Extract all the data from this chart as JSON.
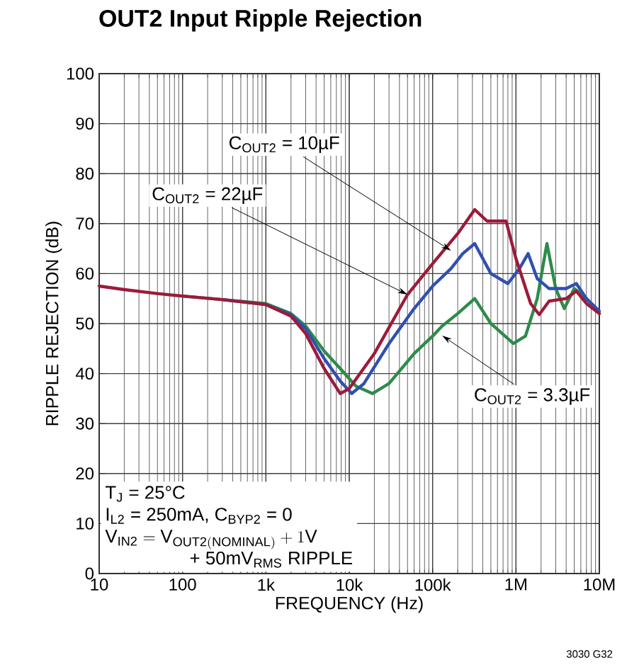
{
  "chart_data": {
    "type": "line",
    "title": "**OUT2 Input Ripple Rejection**",
    "xlabel": "FREQUENCY (Hz)",
    "ylabel": "RIPPLE REJECTION (dB)",
    "log": "x",
    "grid": true,
    "marker": "none",
    "line_style": "solid",
    "xlim": [
      10,
      10000000
    ],
    "ylim": [
      0,
      100
    ],
    "xticks": [
      10,
      100,
      {
        "value": 1000,
        "label": "1k"
      },
      {
        "value": 10000,
        "label": "10k"
      },
      {
        "value": 100000,
        "label": "100k"
      },
      {
        "value": 1000000,
        "label": "1M"
      },
      {
        "value": 10000000,
        "label": "10M"
      }
    ],
    "yticks": [
      0,
      10,
      20,
      30,
      40,
      50,
      60,
      70,
      80,
      90,
      100
    ],
    "series": [
      {
        "color": "#2e8b4a",
        "x": [
          100,
          300,
          1000,
          2000,
          3000,
          5000,
          7800,
          12000,
          19000,
          30000,
          60000,
          100000,
          130000,
          200000,
          320000,
          500000,
          930000,
          1300000,
          1800000,
          2350000,
          3000000,
          3800000,
          5000000,
          7000000,
          10000000
        ],
        "values": [
          55.5,
          54.8,
          54,
          52,
          49.5,
          44.5,
          41,
          37.5,
          36,
          38,
          44,
          47.5,
          49.5,
          52,
          55,
          50,
          46,
          47.5,
          55,
          66,
          57,
          53,
          57,
          55,
          52
        ]
      },
      {
        "color": "#3050b0",
        "x": [
          300,
          1000,
          2000,
          3000,
          5000,
          7800,
          10700,
          15000,
          30000,
          60000,
          100000,
          166000,
          230000,
          320000,
          500000,
          800000,
          1100000,
          1400000,
          1800000,
          2500000,
          4000000,
          5300000,
          7000000,
          10000000
        ],
        "values": [
          54.8,
          53.8,
          51.8,
          49,
          43,
          38.5,
          36,
          38,
          46,
          53,
          57.5,
          61,
          64,
          66,
          60,
          58,
          61,
          64,
          59,
          57,
          57,
          58,
          55,
          52.5
        ]
      },
      {
        "color": "#9b1b3a",
        "x": [
          10,
          20,
          50,
          100,
          300,
          1000,
          2000,
          3000,
          5000,
          7800,
          10000,
          20000,
          50000,
          100000,
          200000,
          320000,
          450000,
          760000,
          1000000,
          1500000,
          1900000,
          2500000,
          4000000,
          5300000,
          7000000,
          10000000
        ],
        "values": [
          57.5,
          56.8,
          56,
          55.5,
          54.8,
          53.8,
          51.5,
          48,
          41,
          36,
          37,
          44,
          55.8,
          62,
          68,
          72.8,
          70.5,
          70.5,
          63,
          54,
          51.8,
          54.5,
          55,
          56.5,
          54,
          52
        ]
      }
    ],
    "annotations": [
      {
        "text": "C$_{OUT2}$ = 10µF",
        "x": 166000,
        "y": 64.6
      },
      {
        "text": "C$_{OUT2}$ = 22µF",
        "x": 50000,
        "y": 55.8
      },
      {
        "text": "C$_{OUT2}$ = 3.3µF",
        "x": 130000,
        "y": 47.6
      },
      "T$_{J}$ = 25°C",
      "I$_{L2}$ = 250mA, C$_{BYP2}$ = 0",
      "\\mathrm{V_{IN2}} = \\mathrm{V_{OUT2(NOMINAL)}} + 1\\mathrm{V}",
      "+ 50mV$_{RMS}$ RIPPLE",
      "3030 G32"
    ]
  }
}
